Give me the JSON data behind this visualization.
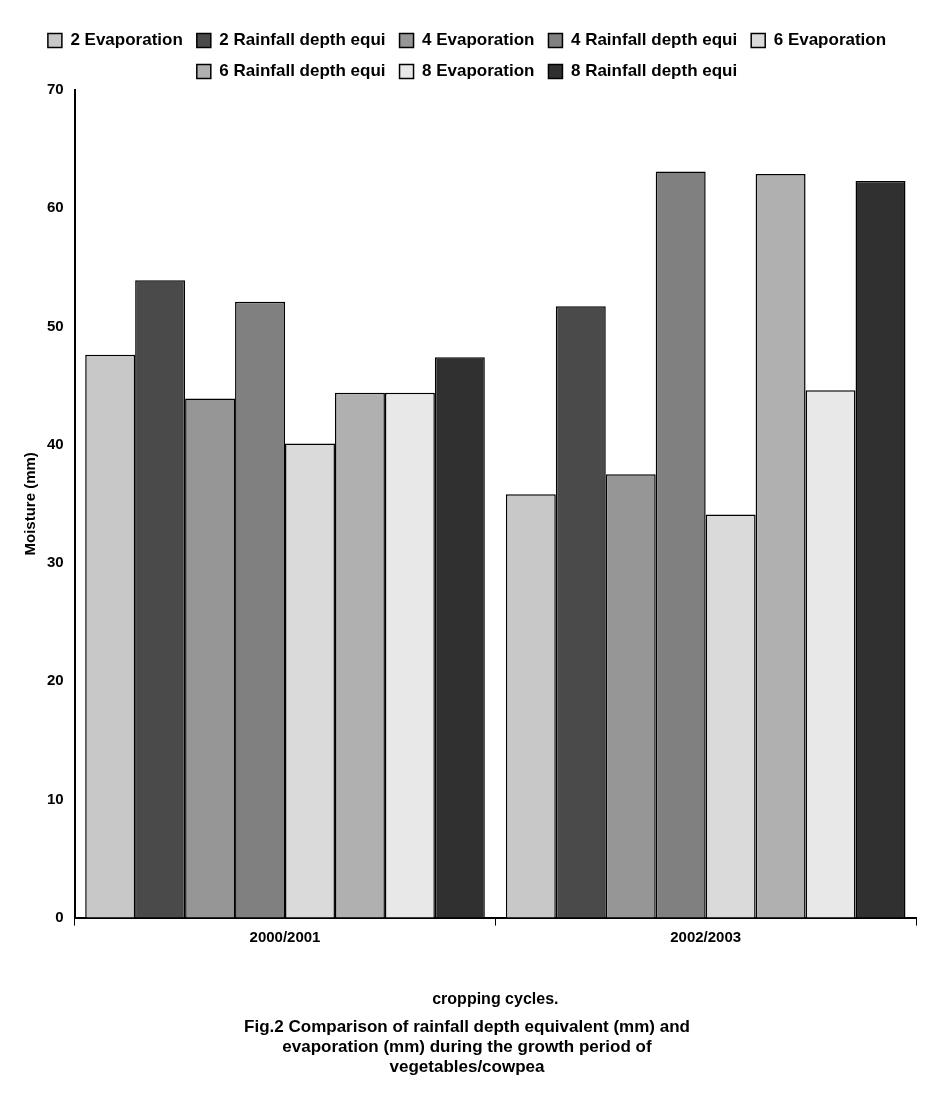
{
  "chart_data": {
    "type": "bar",
    "title": "Fig.2 Comparison of rainfall depth equivalent (mm) and evaporation (mm) during the growth period of vegetables/cowpea",
    "xlabel": "cropping cycles.",
    "ylabel": "Moisture (mm)",
    "categories": [
      "2000/2001",
      "2002/2003"
    ],
    "series": [
      {
        "name": "2 Evaporation",
        "color": "#c8c8c8",
        "values": [
          47.6,
          35.8
        ]
      },
      {
        "name": "2 Rainfall depth equi",
        "color": "#4a4a4a",
        "values": [
          53.9,
          51.7
        ]
      },
      {
        "name": "4 Evaporation",
        "color": "#969696",
        "values": [
          43.9,
          37.5
        ]
      },
      {
        "name": "4 Rainfall depth equi",
        "color": "#808080",
        "values": [
          52.1,
          63.1
        ]
      },
      {
        "name": "6 Evaporation",
        "color": "#dadada",
        "values": [
          40.1,
          34.1
        ]
      },
      {
        "name": "6 Rainfall depth equi",
        "color": "#b0b0b0",
        "values": [
          44.4,
          62.9
        ]
      },
      {
        "name": "8 Evaporation",
        "color": "#e8e8e8",
        "values": [
          44.4,
          44.6
        ]
      },
      {
        "name": "8 Rainfall depth equi",
        "color": "#303030",
        "values": [
          47.4,
          62.3
        ]
      }
    ],
    "ylim": [
      0,
      70
    ],
    "yticks": [
      0,
      10,
      20,
      30,
      40,
      50,
      60,
      70
    ],
    "grid": false,
    "legend": "top"
  }
}
